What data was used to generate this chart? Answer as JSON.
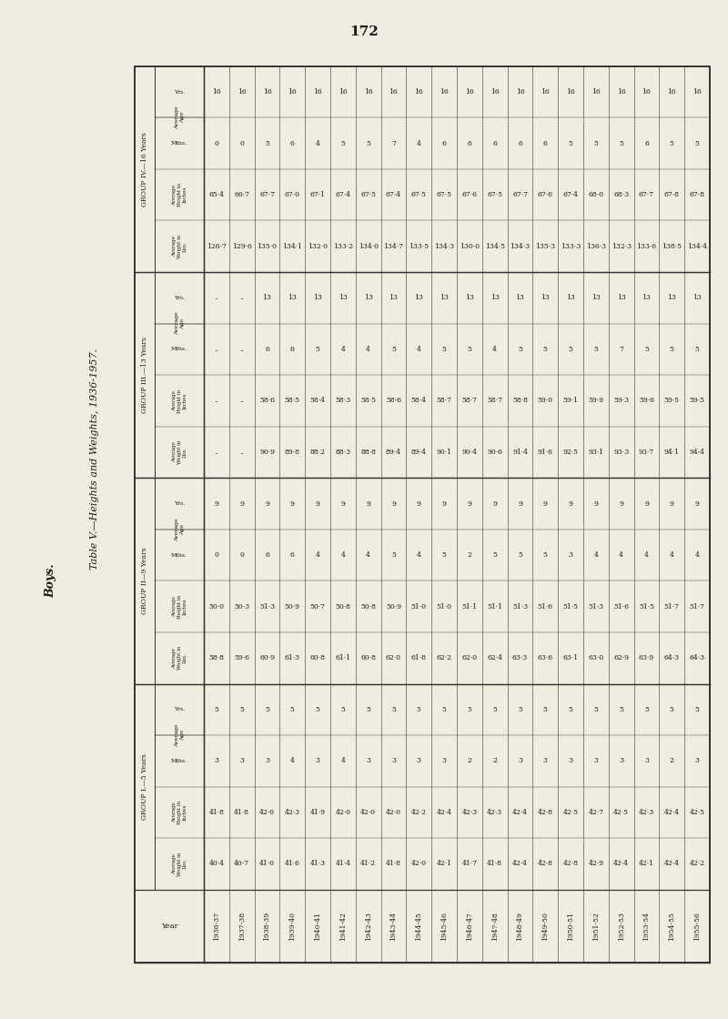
{
  "page_number": "172",
  "title": "Table V.—Heights and Weights, 1936-1957.",
  "subtitle": "Boys.",
  "background_color": "#f0ece0",
  "text_color": "#1a1a1a",
  "years": [
    "1936-37",
    "1937-38",
    "1938-39",
    "1939-40",
    "1940-41",
    "1941-42",
    "1942-43",
    "1943-44",
    "1944-45",
    "1945-46",
    "1946-47",
    "1947-48",
    "1948-49",
    "1949-50",
    "1950-51",
    "1951-52",
    "1952-53",
    "1953-54",
    "1954-55",
    "1955-56"
  ],
  "group1": {
    "label": "GROUP I.—5 Years",
    "age_yrs": [
      "5",
      "5",
      "5",
      "5",
      "5",
      "5",
      "5",
      "5",
      "5",
      "5",
      "5",
      "5",
      "5",
      "5",
      "5",
      "5",
      "5",
      "5",
      "5",
      "5"
    ],
    "age_mths": [
      "3",
      "3",
      "3",
      "4",
      "3",
      "4",
      "3",
      "3",
      "3",
      "3",
      "2",
      "2",
      "3",
      "3",
      "3",
      "3",
      "3",
      "3",
      "2",
      "3"
    ],
    "avg_height": [
      "41·8",
      "41·8",
      "42·0",
      "42·3",
      "41·9",
      "42·0",
      "42·0",
      "42·0",
      "42·2",
      "42·4",
      "42·3",
      "42·3",
      "42·4",
      "42·8",
      "42·5",
      "42·7",
      "42·5",
      "42·3",
      "42·4",
      "42·5"
    ],
    "avg_weight": [
      "40·4",
      "40·7",
      "41·0",
      "41·6",
      "41·3",
      "41·4",
      "41·2",
      "41·8",
      "42·0",
      "42·1",
      "41·7",
      "41·8",
      "42·4",
      "42·8",
      "42·8",
      "42·9",
      "42·4",
      "42·1",
      "42·4",
      "42·2"
    ]
  },
  "group2": {
    "label": "GROUP II—9 Years",
    "age_yrs": [
      "9",
      "9",
      "9",
      "9",
      "9",
      "9",
      "9",
      "9",
      "9",
      "9",
      "9",
      "9",
      "9",
      "9",
      "9",
      "9",
      "9",
      "9",
      "9",
      "9"
    ],
    "age_mths": [
      "0",
      "0",
      "6",
      "6",
      "4",
      "4",
      "4",
      "5",
      "4",
      "5",
      "2",
      "5",
      "5",
      "5",
      "3",
      "4",
      "4",
      "4",
      "4",
      "4"
    ],
    "avg_height": [
      "50·0",
      "50·3",
      "51·3",
      "50·9",
      "50·7",
      "50·8",
      "50·8",
      "50·9",
      "51·0",
      "51·0",
      "51·1",
      "51·1",
      "51·3",
      "51·6",
      "51·5",
      "51·3",
      "51·6",
      "51·5",
      "51·7",
      "51·7"
    ],
    "avg_weight": [
      "58·8",
      "59·6",
      "60·9",
      "61·3",
      "60·8",
      "61·1",
      "60·8",
      "62·0",
      "61·8",
      "62·2",
      "62·0",
      "62·4",
      "63·3",
      "63·6",
      "63·1",
      "63·0",
      "62·9",
      "63·9",
      "64·3",
      "64·3"
    ]
  },
  "group3": {
    "label": "GROUP III.—13 Years",
    "age_yrs": [
      "..",
      "..",
      "13",
      "13",
      "13",
      "13",
      "13",
      "13",
      "13",
      "13",
      "13",
      "13",
      "13",
      "13",
      "13",
      "13",
      "13",
      "13",
      "13",
      "13"
    ],
    "age_mths": [
      "..",
      "..",
      "6",
      "6",
      "5",
      "4",
      "4",
      "5",
      "4",
      "5",
      "5",
      "4",
      "5",
      "5",
      "5",
      "5",
      "7",
      "5",
      "5",
      "5"
    ],
    "avg_height": [
      "..",
      "..",
      "58·6",
      "58·5",
      "58·4",
      "58·3",
      "58·5",
      "58·6",
      "58·4",
      "58·7",
      "58·7",
      "58·7",
      "58·8",
      "59·0",
      "59·1",
      "59·9",
      "59·3",
      "59·6",
      "59·5",
      "59·5"
    ],
    "avg_weight": [
      "..",
      "..",
      "90·9",
      "89·8",
      "88·2",
      "88·3",
      "88·8",
      "89·4",
      "89·4",
      "90·1",
      "90·4",
      "90·6",
      "91·4",
      "91·6",
      "92·5",
      "93·1",
      "93·3",
      "93·7",
      "94·1",
      "94·4"
    ]
  },
  "group4": {
    "label": "GROUP IV.—16 Years",
    "age_yrs": [
      "16",
      "16",
      "16",
      "16",
      "16",
      "16",
      "16",
      "16",
      "16",
      "16",
      "16",
      "16",
      "16",
      "16",
      "16",
      "16",
      "16",
      "16",
      "16",
      "16"
    ],
    "age_mths": [
      "0",
      "0",
      "5",
      "6",
      "4",
      "5",
      "5",
      "7",
      "4",
      "6",
      "6",
      "6",
      "6",
      "6",
      "5",
      "5",
      "5",
      "6",
      "5",
      "5"
    ],
    "avg_height": [
      "65·4",
      "66·7",
      "67·7",
      "67·0",
      "67·1",
      "67·4",
      "67·5",
      "67·4",
      "67·5",
      "67·5",
      "67·6",
      "67·5",
      "67·7",
      "67·6",
      "67·4",
      "68·0",
      "68·3",
      "67·7",
      "67·8",
      "67·8"
    ],
    "avg_weight": [
      "126·7",
      "129·6",
      "135·0",
      "134·1",
      "132·0",
      "133·2",
      "134·0",
      "134·7",
      "133·5",
      "134·3",
      "130·0",
      "134·5",
      "134·3",
      "135·3",
      "133·3",
      "136·3",
      "132·3",
      "133·6",
      "138·5",
      "134·4"
    ]
  }
}
